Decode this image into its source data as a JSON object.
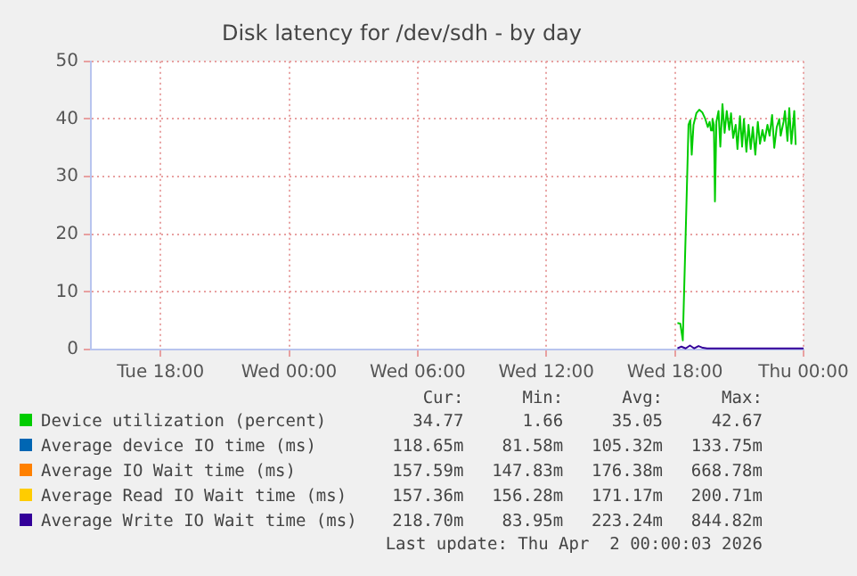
{
  "chart_data": {
    "type": "line",
    "title": "Disk latency for /dev/sdh - by day",
    "xlim": [
      "2026-03-31T14:45",
      "2026-04-02T00:00"
    ],
    "xticks": [
      {
        "value": "2026-03-31T18:00",
        "label": "Tue 18:00"
      },
      {
        "value": "2026-04-01T00:00",
        "label": "Wed 00:00"
      },
      {
        "value": "2026-04-01T06:00",
        "label": "Wed 06:00"
      },
      {
        "value": "2026-04-01T12:00",
        "label": "Wed 12:00"
      },
      {
        "value": "2026-04-01T18:00",
        "label": "Wed 18:00"
      },
      {
        "value": "2026-04-02T00:00",
        "label": "Thu 00:00"
      }
    ],
    "ylim": [
      0,
      50
    ],
    "yticks": [
      0,
      10,
      20,
      30,
      40,
      50
    ],
    "grid": true,
    "legend": "bottom",
    "series": [
      {
        "name": "Device utilization (percent)",
        "color": "#00cc00",
        "x": [
          "2026-04-01T18:07",
          "2026-04-01T18:15",
          "2026-04-01T18:22",
          "2026-04-01T18:30",
          "2026-04-01T18:38",
          "2026-04-01T18:43",
          "2026-04-01T18:47",
          "2026-04-01T18:52",
          "2026-04-01T19:00",
          "2026-04-01T19:08",
          "2026-04-01T19:17",
          "2026-04-01T19:25",
          "2026-04-01T19:32",
          "2026-04-01T19:37",
          "2026-04-01T19:41",
          "2026-04-01T19:45",
          "2026-04-01T19:49",
          "2026-04-01T19:52",
          "2026-04-01T19:56",
          "2026-04-01T20:02",
          "2026-04-01T20:07",
          "2026-04-01T20:13",
          "2026-04-01T20:19",
          "2026-04-01T20:25",
          "2026-04-01T20:32",
          "2026-04-01T20:37",
          "2026-04-01T20:43",
          "2026-04-01T20:50",
          "2026-04-01T20:55",
          "2026-04-01T21:02",
          "2026-04-01T21:08",
          "2026-04-01T21:13",
          "2026-04-01T21:20",
          "2026-04-01T21:26",
          "2026-04-01T21:32",
          "2026-04-01T21:38",
          "2026-04-01T21:45",
          "2026-04-01T21:52",
          "2026-04-01T21:58",
          "2026-04-01T22:05",
          "2026-04-01T22:11",
          "2026-04-01T22:19",
          "2026-04-01T22:25",
          "2026-04-01T22:32",
          "2026-04-01T22:38",
          "2026-04-01T22:45",
          "2026-04-01T22:52",
          "2026-04-01T22:56",
          "2026-04-01T23:04",
          "2026-04-01T23:08",
          "2026-04-01T23:15",
          "2026-04-01T23:20",
          "2026-04-01T23:26",
          "2026-04-01T23:34",
          "2026-04-01T23:38"
        ],
        "values": [
          4.6,
          4.5,
          1.6,
          20,
          39,
          39.8,
          33.8,
          39,
          41,
          41.6,
          41.1,
          40,
          38.6,
          39.5,
          38,
          40,
          39,
          25.7,
          39.5,
          41.4,
          35.2,
          42.6,
          37.6,
          41.4,
          38.1,
          41,
          36.7,
          39,
          34.8,
          40.5,
          35.2,
          40,
          34.3,
          39,
          34.8,
          38.6,
          33.8,
          39.5,
          35.7,
          38.1,
          36.2,
          39,
          37.1,
          40.7,
          35,
          38.6,
          40,
          37.1,
          39.5,
          41.4,
          36.2,
          41.9,
          35.7,
          41.4,
          35.5
        ]
      },
      {
        "name": "Average device IO time (ms)",
        "color": "#0066b3"
      },
      {
        "name": "Average IO Wait time (ms)",
        "color": "#ff8000"
      },
      {
        "name": "Average Read IO Wait time (ms)",
        "color": "#ffcc00"
      },
      {
        "name": "Average Write IO Wait time (ms)",
        "color": "#330099",
        "x": [
          "2026-04-01T18:07",
          "2026-04-01T18:18",
          "2026-04-01T18:30",
          "2026-04-01T18:42",
          "2026-04-01T18:54",
          "2026-04-01T19:06",
          "2026-04-01T19:18",
          "2026-04-01T19:30",
          "2026-04-01T19:48",
          "2026-04-01T20:30",
          "2026-04-01T21:00",
          "2026-04-01T22:00",
          "2026-04-01T23:00",
          "2026-04-02T00:00"
        ],
        "values": [
          0.2,
          0.5,
          0.2,
          0.7,
          0.2,
          0.6,
          0.3,
          0.2,
          0.2,
          0.2,
          0.2,
          0.2,
          0.2,
          0.2
        ]
      }
    ],
    "annotations": [
      "Cur:",
      "Min:",
      "Avg:",
      "Max:",
      "34.77",
      "1.66",
      "35.05",
      "42.67",
      "118.65m",
      "81.58m",
      "105.32m",
      "133.75m",
      "157.59m",
      "147.83m",
      "176.38m",
      "668.78m",
      "157.36m",
      "156.28m",
      "171.17m",
      "200.71m",
      "218.70m",
      "83.95m",
      "223.24m",
      "844.82m",
      "Last update: Thu Apr  2 00:00:03 2026"
    ]
  }
}
